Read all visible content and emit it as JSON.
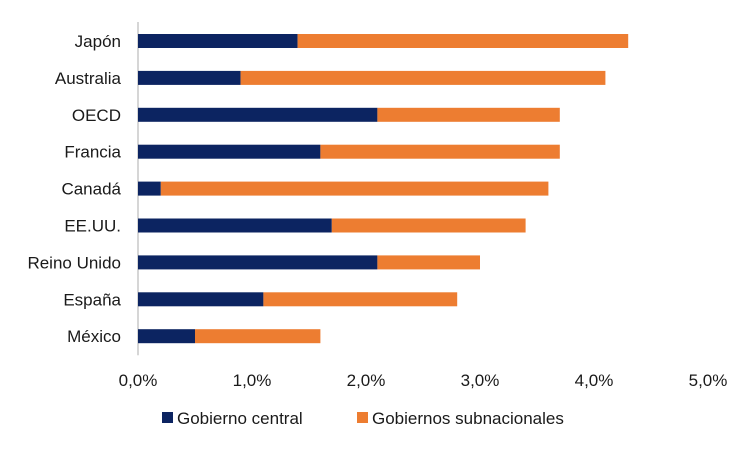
{
  "chart_data": {
    "type": "bar",
    "orientation": "horizontal",
    "stacked": true,
    "title": "",
    "xlabel": "",
    "ylabel": "",
    "xlim": [
      0,
      5
    ],
    "categories": [
      "Japón",
      "Australia",
      "OECD",
      "Francia",
      "Canadá",
      "EE.UU.",
      "Reino Unido",
      "España",
      "México"
    ],
    "series": [
      {
        "name": "Gobierno central",
        "color": "#0c2461",
        "values": [
          1.4,
          0.9,
          2.1,
          1.6,
          0.2,
          1.7,
          2.1,
          1.1,
          0.5
        ]
      },
      {
        "name": "Gobiernos subnacionales",
        "color": "#ed7d31",
        "values": [
          2.9,
          3.2,
          1.6,
          2.1,
          3.4,
          1.7,
          0.9,
          1.7,
          1.1
        ]
      }
    ],
    "ticks": [
      0,
      1,
      2,
      3,
      4,
      5
    ],
    "tick_labels": [
      "0,0%",
      "1,0%",
      "2,0%",
      "3,0%",
      "4,0%",
      "5,0%"
    ],
    "legend_position": "bottom",
    "grid": false
  }
}
